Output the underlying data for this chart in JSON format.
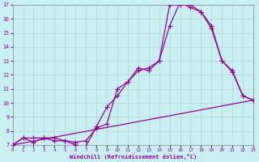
{
  "xlabel": "Windchill (Refroidissement éolien,°C)",
  "background_color": "#c8f0f0",
  "line_color": "#990099",
  "xlim": [
    0,
    23
  ],
  "ylim": [
    7,
    17
  ],
  "xticks": [
    0,
    1,
    2,
    3,
    4,
    5,
    6,
    7,
    8,
    9,
    10,
    11,
    12,
    13,
    14,
    15,
    16,
    17,
    18,
    19,
    20,
    21,
    22,
    23
  ],
  "yticks": [
    7,
    8,
    9,
    10,
    11,
    12,
    13,
    14,
    15,
    16,
    17
  ],
  "series1_x": [
    0,
    1,
    2,
    3,
    4,
    5,
    6,
    7,
    8,
    9,
    10,
    11,
    12,
    13,
    14,
    15,
    16,
    17,
    18,
    19,
    20,
    21,
    22,
    23
  ],
  "series1_y": [
    7,
    7.5,
    7.5,
    7.5,
    7.5,
    7.3,
    7.0,
    6.9,
    8.3,
    9.7,
    10.5,
    11.5,
    12.5,
    12.3,
    13.0,
    17.0,
    17.0,
    17.0,
    16.5,
    15.5,
    13.0,
    12.2,
    10.5,
    10.2
  ],
  "series2_x": [
    0,
    1,
    2,
    3,
    4,
    5,
    6,
    7,
    8,
    9,
    10,
    11,
    12,
    13,
    14,
    15,
    16,
    17,
    18,
    19,
    20,
    21,
    22,
    23
  ],
  "series2_y": [
    7,
    7.5,
    7.2,
    7.5,
    7.3,
    7.3,
    7.2,
    7.3,
    8.2,
    8.5,
    11.0,
    11.5,
    12.3,
    12.5,
    13.0,
    15.5,
    17.2,
    16.8,
    16.5,
    15.3,
    13.0,
    12.3,
    10.5,
    10.2
  ],
  "series3_x": [
    0,
    23
  ],
  "series3_y": [
    7,
    10.2
  ]
}
